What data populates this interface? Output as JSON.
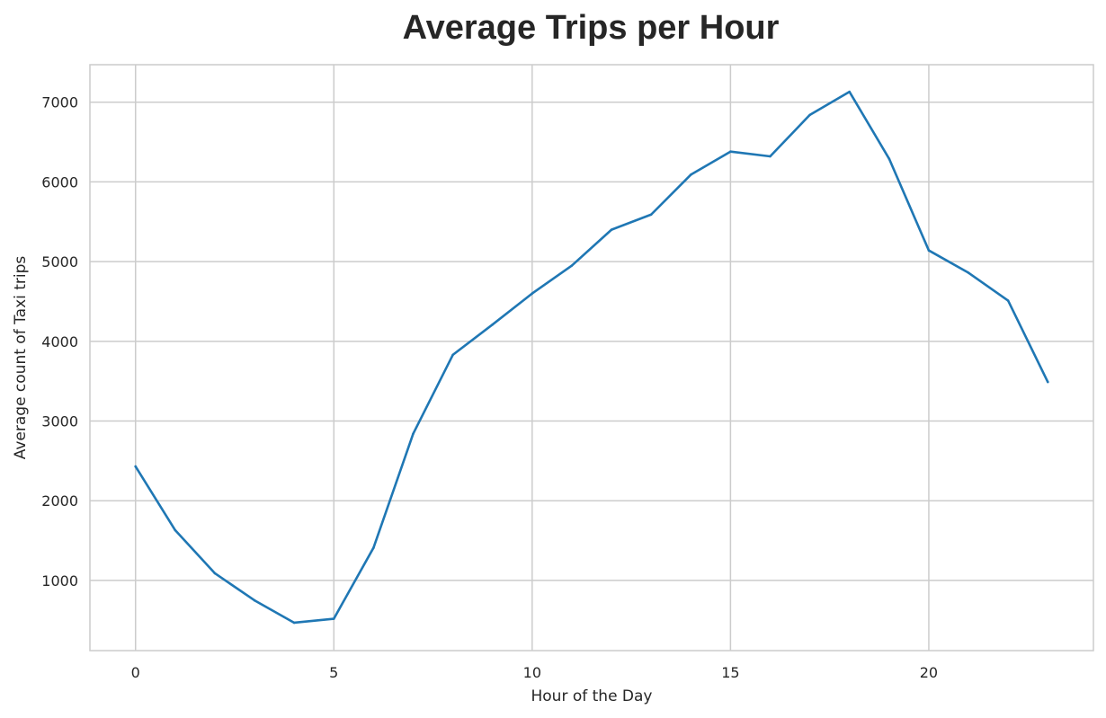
{
  "chart_data": {
    "type": "line",
    "title": "Average Trips per Hour",
    "xlabel": "Hour of the Day",
    "ylabel": "Average count of Taxi trips",
    "xlim": [
      -1.15,
      24.15
    ],
    "ylim": [
      120,
      7470
    ],
    "x_ticks": [
      0,
      5,
      10,
      15,
      20
    ],
    "y_ticks": [
      1000,
      2000,
      3000,
      4000,
      5000,
      6000,
      7000
    ],
    "grid": true,
    "legend": "none",
    "series": [
      {
        "color": "#1f77b4",
        "x": [
          0,
          1,
          2,
          3,
          4,
          5,
          6,
          7,
          8,
          9,
          10,
          11,
          12,
          13,
          14,
          15,
          16,
          17,
          18,
          19,
          20,
          21,
          22,
          23
        ],
        "values": [
          2430,
          1630,
          1090,
          750,
          470,
          520,
          1410,
          2840,
          3830,
          4210,
          4600,
          4950,
          5400,
          5590,
          6090,
          6380,
          6320,
          6840,
          7130,
          6290,
          5140,
          4860,
          4510,
          3490
        ]
      }
    ]
  }
}
